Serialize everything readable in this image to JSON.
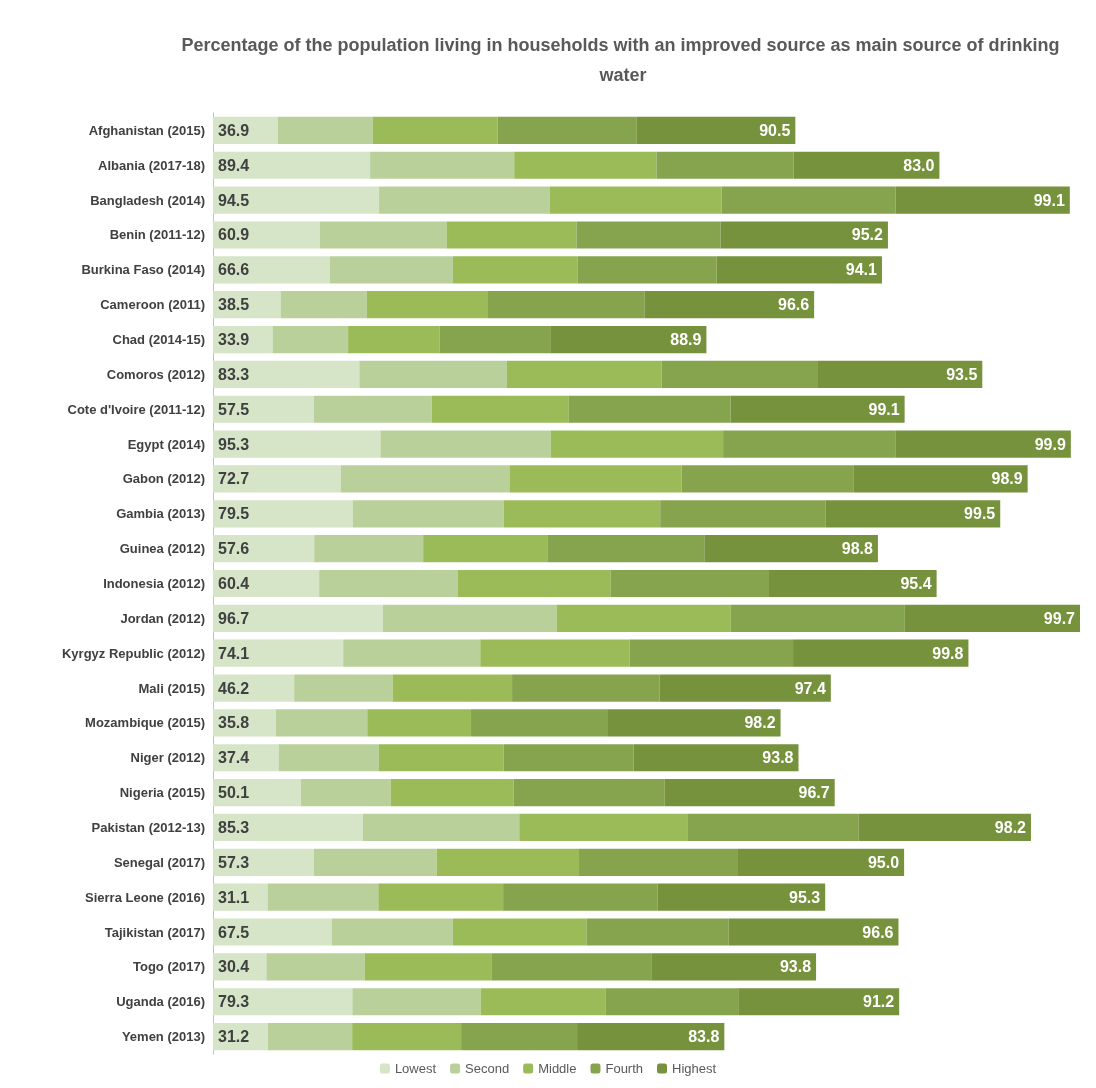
{
  "chart_data": {
    "type": "bar",
    "orientation": "horizontal",
    "stacked": true,
    "title": "Percentage of the population living in households with an improved source as main source of drinking water",
    "legend": "bottom",
    "categories": [
      "Afghanistan (2015)",
      "Albania (2017-18)",
      "Bangladesh (2014)",
      "Benin (2011-12)",
      "Burkina Faso (2014)",
      "Cameroon (2011)",
      "Chad (2014-15)",
      "Comoros (2012)",
      "Cote d'Ivoire (2011-12)",
      "Egypt (2014)",
      "Gabon (2012)",
      "Gambia (2013)",
      "Guinea (2012)",
      "Indonesia (2012)",
      "Jordan (2012)",
      "Kyrgyz Republic (2012)",
      "Mali (2015)",
      "Mozambique (2015)",
      "Niger (2012)",
      "Nigeria (2015)",
      "Pakistan (2012-13)",
      "Senegal (2017)",
      "Sierra Leone (2016)",
      "Tajikistan (2017)",
      "Togo (2017)",
      "Uganda (2016)",
      "Yemen (2013)"
    ],
    "series": [
      {
        "name": "Lowest",
        "color": "#d6e4c8",
        "values": [
          36.9,
          89.4,
          94.5,
          60.9,
          66.6,
          38.5,
          33.9,
          83.3,
          57.5,
          95.3,
          72.7,
          79.5,
          57.6,
          60.4,
          96.7,
          74.1,
          46.2,
          35.8,
          37.4,
          50.1,
          85.3,
          57.3,
          31.1,
          67.5,
          30.4,
          79.3,
          31.2
        ],
        "value_labels": [
          "36.9",
          "89.4",
          "94.5",
          "60.9",
          "66.6",
          "38.5",
          "33.9",
          "83.3",
          "57.5",
          "95.3",
          "72.7",
          "79.5",
          "57.6",
          "60.4",
          "96.7",
          "74.1",
          "46.2",
          "35.8",
          "37.4",
          "50.1",
          "85.3",
          "57.3",
          "31.1",
          "67.5",
          "30.4",
          "79.3",
          "31.2"
        ]
      },
      {
        "name": "Second",
        "color": "#b9d09a",
        "values": [
          54,
          82,
          97,
          72,
          70,
          49,
          43,
          84,
          67,
          97,
          96,
          86,
          62,
          79,
          99,
          78,
          56,
          52,
          57,
          51,
          89,
          70,
          63,
          69,
          56,
          73,
          48
        ]
      },
      {
        "name": "Middle",
        "color": "#9bbb59",
        "values": [
          71,
          81,
          98,
          74,
          71,
          69,
          52,
          88,
          78,
          98,
          98,
          89,
          71,
          87,
          99,
          85,
          68,
          59,
          71,
          70,
          96,
          81,
          71,
          76,
          72,
          71,
          62
        ]
      },
      {
        "name": "Fourth",
        "color": "#86a34e",
        "values": [
          79,
          78,
          99,
          82,
          79,
          89,
          63,
          89,
          92,
          98,
          98,
          94,
          89,
          90,
          99,
          93,
          84,
          78,
          74,
          86,
          97,
          90,
          88,
          81,
          91,
          76,
          66
        ]
      },
      {
        "name": "Highest",
        "color": "#76923c",
        "values": [
          90.5,
          83.0,
          99.1,
          95.2,
          94.1,
          96.6,
          88.9,
          93.5,
          99.1,
          99.9,
          98.9,
          99.5,
          98.8,
          95.4,
          99.7,
          99.8,
          97.4,
          98.2,
          93.8,
          96.7,
          98.2,
          95.0,
          95.3,
          96.6,
          93.8,
          91.2,
          83.8
        ],
        "value_labels": [
          "90.5",
          "83.0",
          "99.1",
          "95.2",
          "94.1",
          "96.6",
          "88.9",
          "93.5",
          "99.1",
          "99.9",
          "98.9",
          "99.5",
          "98.8",
          "95.4",
          "99.7",
          "99.8",
          "97.4",
          "98.2",
          "93.8",
          "96.7",
          "98.2",
          "95.0",
          "95.3",
          "96.6",
          "93.8",
          "91.2",
          "83.8"
        ]
      }
    ]
  }
}
